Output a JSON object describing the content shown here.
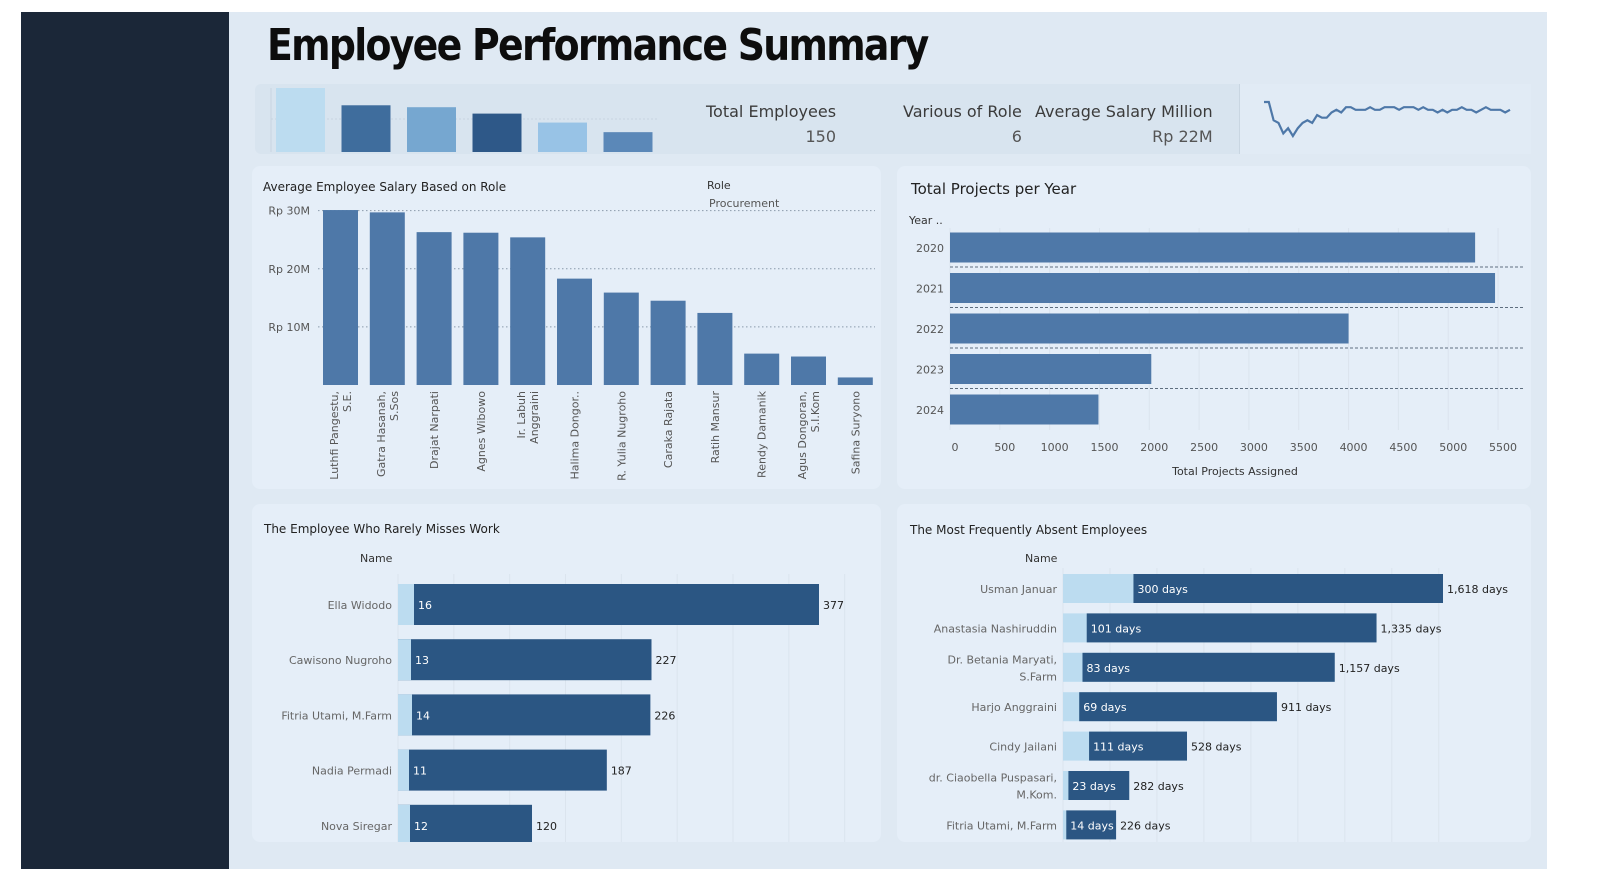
{
  "title": "Employee Performance Summary",
  "kpis": {
    "total_employees_label": "Total Employees",
    "total_employees_value": "150",
    "roles_label": "Various of Role",
    "roles_value": "6",
    "avg_salary_label": "Average Salary Million",
    "avg_salary_value": "Rp 22M"
  },
  "colors": {
    "bar": "#4e78a8",
    "bar_dark": "#2b5683",
    "bar_light": "#bcdcf0",
    "sidebar": "#1b2738",
    "canvas": "#dfe9f3"
  },
  "kpi_minibars": {
    "values": [
      100,
      73,
      70,
      60,
      46,
      31
    ],
    "colors": [
      "#bcdcf0",
      "#3f6d9d",
      "#76a7d0",
      "#2e5888",
      "#98c3e6",
      "#5b88b8"
    ]
  },
  "sparkline": {
    "values": [
      62,
      62,
      55,
      54,
      50,
      52,
      49,
      52,
      54,
      55,
      54,
      57,
      56,
      56,
      58,
      59,
      58,
      60,
      60,
      59,
      59,
      59,
      60,
      59,
      59,
      60,
      60,
      60,
      59,
      60,
      60,
      60,
      59,
      60,
      59,
      59,
      58,
      59,
      58,
      59,
      59,
      60,
      59,
      59,
      58,
      59,
      60,
      59,
      59,
      59,
      58,
      59
    ]
  },
  "chart_data": [
    {
      "type": "bar",
      "title": "Average Employee Salary Based on Role",
      "legend_title": "Role",
      "legend_entries": [
        "Procurement"
      ],
      "categories": [
        "Luthfi Pangestu, S.E.",
        "Gatra Hasanah, S.Sos",
        "Drajat Narpati",
        "Agnes Wibowo",
        "Ir. Labuh Anggraini",
        "Halima Dongor..",
        "R. Yulia Nugroho",
        "Caraka Rajata",
        "Ratih Mansur",
        "Rendy Damanik",
        "Agus Dongoran, S.I.Kom",
        "Safina Suryono"
      ],
      "category_lines": [
        [
          "Luthfi Pangestu,",
          "S.E."
        ],
        [
          "Gatra Hasanah,",
          "S.Sos"
        ],
        [
          "Drajat Narpati"
        ],
        [
          "Agnes Wibowo"
        ],
        [
          "Ir. Labuh",
          "Anggraini"
        ],
        [
          "Halima Dongor.."
        ],
        [
          "R. Yulia Nugroho"
        ],
        [
          "Caraka Rajata"
        ],
        [
          "Ratih Mansur"
        ],
        [
          "Rendy Damanik"
        ],
        [
          "Agus Dongoran,",
          "S.I.Kom"
        ],
        [
          "Safina Suryono"
        ]
      ],
      "values": [
        30.1,
        29.7,
        26.3,
        26.2,
        25.4,
        18.3,
        15.9,
        14.5,
        12.4,
        5.4,
        4.9,
        1.3
      ],
      "yticks": [
        10,
        20,
        30
      ],
      "ytick_labels": [
        "Rp 10M",
        "Rp 20M",
        "Rp 30M"
      ],
      "ylim": [
        0,
        32
      ],
      "grid": true
    },
    {
      "type": "bar",
      "orientation": "horizontal",
      "title": "Total Projects per Year",
      "ylabel": "Year ..",
      "xlabel": "Total Projects Assigned",
      "categories": [
        "2020",
        "2021",
        "2022",
        "2023",
        "2024"
      ],
      "values": [
        5270,
        5470,
        4000,
        2020,
        1490
      ],
      "xticks": [
        0,
        500,
        1000,
        1500,
        2000,
        2500,
        3000,
        3500,
        4000,
        4500,
        5000,
        5500
      ],
      "xlim": [
        0,
        5600
      ]
    },
    {
      "type": "bar",
      "orientation": "horizontal",
      "title": "The Employee Who Rarely Misses Work",
      "ylabel": "Name",
      "categories": [
        "Ella Widodo",
        "Cawisono Nugroho",
        "Fitria Utami, M.Farm",
        "Nadia Permadi",
        "Nova Siregar"
      ],
      "series": [
        {
          "values": [
            16,
            13,
            14,
            11,
            12
          ]
        },
        {
          "values": [
            377,
            227,
            226,
            187,
            120
          ]
        }
      ],
      "xlim": [
        0,
        400
      ]
    },
    {
      "type": "bar",
      "orientation": "horizontal",
      "title": "The Most Frequently Absent Employees",
      "ylabel": "Name",
      "categories": [
        "Usman Januar",
        "Anastasia Nashiruddin",
        "Dr. Betania Maryati, S.Farm",
        "Harjo Anggraini",
        "Cindy Jailani",
        "dr. Ciaobella Puspasari, M.Kom.",
        "Fitria Utami, M.Farm"
      ],
      "category_lines": [
        [
          "Usman Januar"
        ],
        [
          "Anastasia Nashiruddin"
        ],
        [
          "Dr. Betania Maryati,",
          "S.Farm"
        ],
        [
          "Harjo Anggraini"
        ],
        [
          "Cindy Jailani"
        ],
        [
          "dr. Ciaobella Puspasari,",
          "M.Kom."
        ],
        [
          "Fitria Utami, M.Farm"
        ]
      ],
      "series": [
        {
          "values": [
            300,
            101,
            83,
            69,
            111,
            23,
            14
          ],
          "labels": [
            "300 days",
            "101 days",
            "83 days",
            "69 days",
            "111 days",
            "23 days",
            "14 days"
          ]
        },
        {
          "values": [
            1618,
            1335,
            1157,
            911,
            528,
            282,
            226
          ],
          "labels": [
            "1,618 days",
            "1,335 days",
            "1,157 days",
            "911 days",
            "528 days",
            "282 days",
            "226 days"
          ]
        }
      ],
      "xlim": [
        0,
        1700
      ]
    }
  ]
}
